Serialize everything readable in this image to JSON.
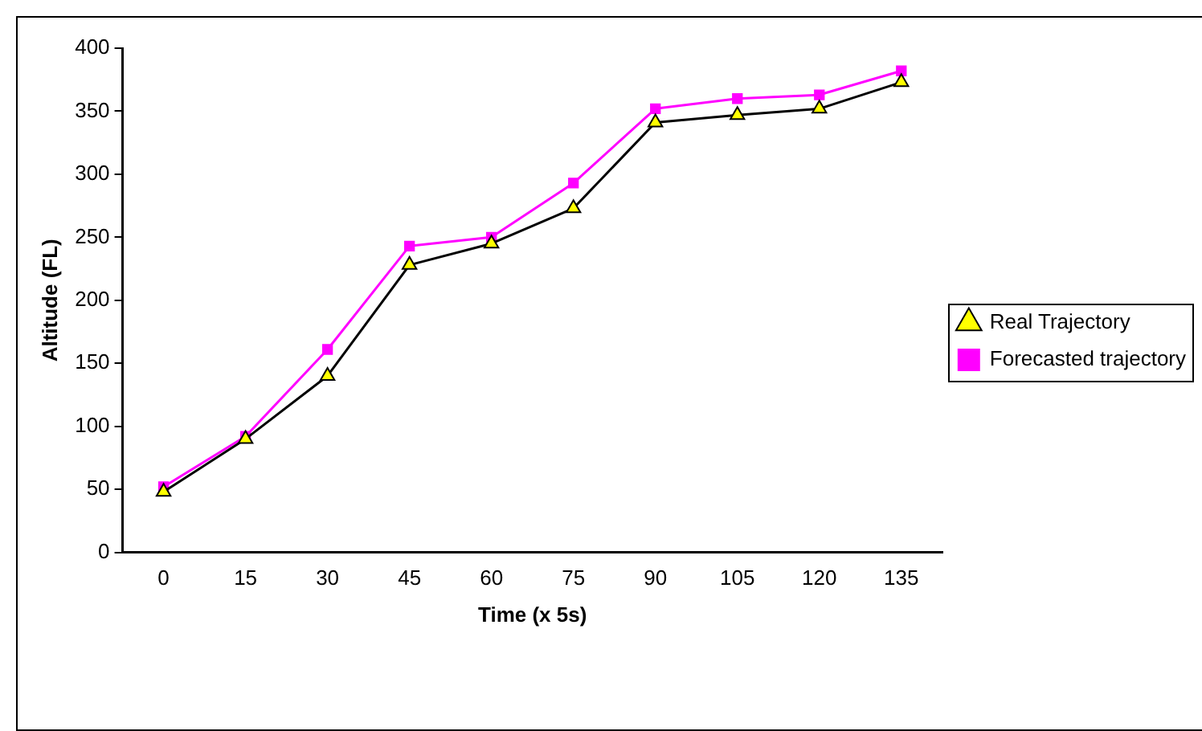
{
  "chart_data": {
    "type": "line",
    "xlabel": "Time (x 5s)",
    "ylabel": "Altitude (FL)",
    "categories": [
      "0",
      "15",
      "30",
      "45",
      "60",
      "75",
      "90",
      "105",
      "120",
      "135"
    ],
    "series": [
      {
        "name": "Forecasted trajectory",
        "color": "#ff00ff",
        "marker": "square",
        "values": [
          52,
          92,
          161,
          243,
          250,
          293,
          352,
          360,
          363,
          382
        ]
      },
      {
        "name": "Real Trajectory",
        "color": "#000000",
        "marker": "triangle",
        "values": [
          48,
          90,
          140,
          228,
          245,
          273,
          341,
          347,
          352,
          373
        ]
      }
    ],
    "ylim": [
      0,
      400
    ],
    "yticks": [
      0,
      50,
      100,
      150,
      200,
      250,
      300,
      350,
      400
    ],
    "grid": false,
    "legend": "right"
  }
}
